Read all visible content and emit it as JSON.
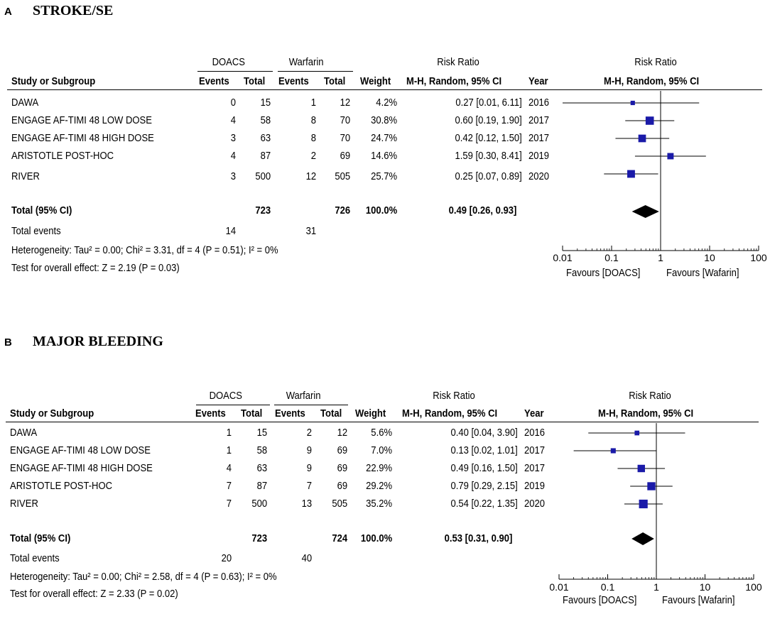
{
  "panels": [
    {
      "letter": "A",
      "title": "STROKE/SE",
      "group1": "DOACS",
      "group2": "Warfarin",
      "rr_header": "Risk Ratio",
      "rr_subheader": "M-H, Random, 95% CI",
      "col_study": "Study or Subgroup",
      "col_events": "Events",
      "col_total": "Total",
      "col_weight": "Weight",
      "col_year": "Year",
      "plot_header": "Risk Ratio",
      "plot_subheader": "M-H, Random, 95% CI",
      "studies": [
        {
          "name": "DAWA",
          "e1": "0",
          "n1": "15",
          "e2": "1",
          "n2": "12",
          "weight": "4.2%",
          "ci": "0.27 [0.01, 6.11]",
          "year": "2016"
        },
        {
          "name": "ENGAGE AF-TIMI 48 LOW DOSE",
          "e1": "4",
          "n1": "58",
          "e2": "8",
          "n2": "70",
          "weight": "30.8%",
          "ci": "0.60 [0.19, 1.90]",
          "year": "2017"
        },
        {
          "name": "ENGAGE AF-TIMI 48 HIGH DOSE",
          "e1": "3",
          "n1": "63",
          "e2": "8",
          "n2": "70",
          "weight": "24.7%",
          "ci": "0.42 [0.12, 1.50]",
          "year": "2017"
        },
        {
          "name": "ARISTOTLE POST-HOC",
          "e1": "4",
          "n1": "87",
          "e2": "2",
          "n2": "69",
          "weight": "14.6%",
          "ci": "1.59 [0.30, 8.41]",
          "year": "2019"
        },
        {
          "name": "RIVER",
          "e1": "3",
          "n1": "500",
          "e2": "12",
          "n2": "505",
          "weight": "25.7%",
          "ci": "0.25 [0.07, 0.89]",
          "year": "2020"
        }
      ],
      "total_label": "Total (95% CI)",
      "total_n1": "723",
      "total_n2": "726",
      "total_weight": "100.0%",
      "total_ci": "0.49 [0.26, 0.93]",
      "events_label": "Total events",
      "events1": "14",
      "events2": "31",
      "heterogeneity": "Heterogeneity: Tau² = 0.00; Chi² = 3.31, df = 4 (P = 0.51); I² = 0%",
      "overall": "Test for overall effect: Z = 2.19 (P = 0.03)",
      "favours_left": "Favours [DOACS]",
      "favours_right": "Favours [Wafarin]"
    },
    {
      "letter": "B",
      "title": "MAJOR BLEEDING",
      "group1": "DOACS",
      "group2": "Warfarin",
      "rr_header": "Risk Ratio",
      "rr_subheader": "M-H, Random, 95% CI",
      "col_study": "Study or Subgroup",
      "col_events": "Events",
      "col_total": "Total",
      "col_weight": "Weight",
      "col_year": "Year",
      "plot_header": "Risk Ratio",
      "plot_subheader": "M-H, Random, 95% CI",
      "studies": [
        {
          "name": "DAWA",
          "e1": "1",
          "n1": "15",
          "e2": "2",
          "n2": "12",
          "weight": "5.6%",
          "ci": "0.40 [0.04, 3.90]",
          "year": "2016"
        },
        {
          "name": "ENGAGE AF-TIMI 48 LOW DOSE",
          "e1": "1",
          "n1": "58",
          "e2": "9",
          "n2": "69",
          "weight": "7.0%",
          "ci": "0.13 [0.02, 1.01]",
          "year": "2017"
        },
        {
          "name": "ENGAGE AF-TIMI 48 HIGH DOSE",
          "e1": "4",
          "n1": "63",
          "e2": "9",
          "n2": "69",
          "weight": "22.9%",
          "ci": "0.49 [0.16, 1.50]",
          "year": "2017"
        },
        {
          "name": "ARISTOTLE POST-HOC",
          "e1": "7",
          "n1": "87",
          "e2": "7",
          "n2": "69",
          "weight": "29.2%",
          "ci": "0.79 [0.29, 2.15]",
          "year": "2019"
        },
        {
          "name": "RIVER",
          "e1": "7",
          "n1": "500",
          "e2": "13",
          "n2": "505",
          "weight": "35.2%",
          "ci": "0.54 [0.22, 1.35]",
          "year": "2020"
        }
      ],
      "total_label": "Total (95% CI)",
      "total_n1": "723",
      "total_n2": "724",
      "total_weight": "100.0%",
      "total_ci": "0.53 [0.31, 0.90]",
      "events_label": "Total events",
      "events1": "20",
      "events2": "40",
      "heterogeneity": "Heterogeneity: Tau² = 0.00; Chi² = 2.58, df = 4 (P = 0.63); I² = 0%",
      "overall": "Test for overall effect: Z = 2.33 (P = 0.02)",
      "favours_left": "Favours [DOACS]",
      "favours_right": "Favours [Wafarin]"
    }
  ],
  "chart_data": [
    {
      "type": "forest",
      "title": "STROKE/SE",
      "scale": "log",
      "xlim": [
        0.01,
        100
      ],
      "ticks": [
        0.01,
        0.1,
        1,
        10,
        100
      ],
      "tick_labels": [
        "0.01",
        "0.1",
        "1",
        "10",
        "100"
      ],
      "reference": 1,
      "studies": [
        {
          "name": "DAWA",
          "rr": 0.27,
          "lo": 0.01,
          "hi": 6.11,
          "weight": 4.2
        },
        {
          "name": "ENGAGE AF-TIMI 48 LOW DOSE",
          "rr": 0.6,
          "lo": 0.19,
          "hi": 1.9,
          "weight": 30.8
        },
        {
          "name": "ENGAGE AF-TIMI 48 HIGH DOSE",
          "rr": 0.42,
          "lo": 0.12,
          "hi": 1.5,
          "weight": 24.7
        },
        {
          "name": "ARISTOTLE POST-HOC",
          "rr": 1.59,
          "lo": 0.3,
          "hi": 8.41,
          "weight": 14.6
        },
        {
          "name": "RIVER",
          "rr": 0.25,
          "lo": 0.07,
          "hi": 0.89,
          "weight": 25.7
        }
      ],
      "pooled": {
        "rr": 0.49,
        "lo": 0.26,
        "hi": 0.93
      }
    },
    {
      "type": "forest",
      "title": "MAJOR BLEEDING",
      "scale": "log",
      "xlim": [
        0.01,
        100
      ],
      "ticks": [
        0.01,
        0.1,
        1,
        10,
        100
      ],
      "tick_labels": [
        "0.01",
        "0.1",
        "1",
        "10",
        "100"
      ],
      "reference": 1,
      "studies": [
        {
          "name": "DAWA",
          "rr": 0.4,
          "lo": 0.04,
          "hi": 3.9,
          "weight": 5.6
        },
        {
          "name": "ENGAGE AF-TIMI 48 LOW DOSE",
          "rr": 0.13,
          "lo": 0.02,
          "hi": 1.01,
          "weight": 7.0
        },
        {
          "name": "ENGAGE AF-TIMI 48 HIGH DOSE",
          "rr": 0.49,
          "lo": 0.16,
          "hi": 1.5,
          "weight": 22.9
        },
        {
          "name": "ARISTOTLE POST-HOC",
          "rr": 0.79,
          "lo": 0.29,
          "hi": 2.15,
          "weight": 29.2
        },
        {
          "name": "RIVER",
          "rr": 0.54,
          "lo": 0.22,
          "hi": 1.35,
          "weight": 35.2
        }
      ],
      "pooled": {
        "rr": 0.53,
        "lo": 0.31,
        "hi": 0.9
      }
    }
  ],
  "colors": {
    "marker": "#1a1aa8",
    "line": "#000000",
    "diamond": "#000000"
  }
}
